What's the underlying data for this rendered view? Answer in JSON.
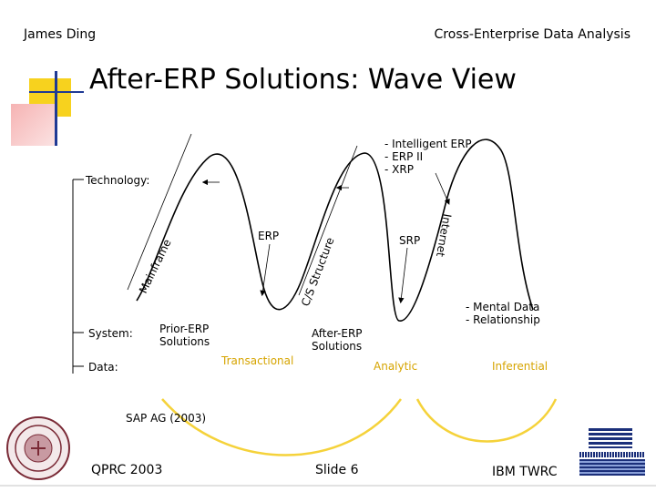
{
  "header": {
    "author": "James Ding",
    "topic": "Cross-Enterprise Data Analysis"
  },
  "title": "After-ERP Solutions: Wave View",
  "labels": {
    "technology": "Technology:",
    "system": "System:",
    "data": "Data:",
    "mainframe": "Mainframe",
    "cs_structure": "C/S Structure",
    "internet": "Internet",
    "erp": "ERP",
    "srp": "SRP",
    "intelligent_erp": [
      "- Intelligent ERP",
      "- ERP II",
      "- XRP"
    ],
    "prior_erp": [
      "Prior-ERP",
      "Solutions"
    ],
    "after_erp": [
      "After-ERP",
      "Solutions"
    ],
    "mental_data": [
      "- Mental Data",
      "- Relationship"
    ],
    "transactional": "Transactional",
    "analytic": "Analytic",
    "inferential": "Inferential",
    "source": "SAP AG (2003)"
  },
  "footer": {
    "conference": "QPRC 2003",
    "slide": "Slide 6",
    "org": "IBM TWRC"
  },
  "colors": {
    "accent_yellow": "#f5c518",
    "accent_pink": "#f2a0a0",
    "accent_blue": "#223a9a",
    "arc_yellow": "#f5d23a",
    "label_yellow": "#d6a400"
  }
}
